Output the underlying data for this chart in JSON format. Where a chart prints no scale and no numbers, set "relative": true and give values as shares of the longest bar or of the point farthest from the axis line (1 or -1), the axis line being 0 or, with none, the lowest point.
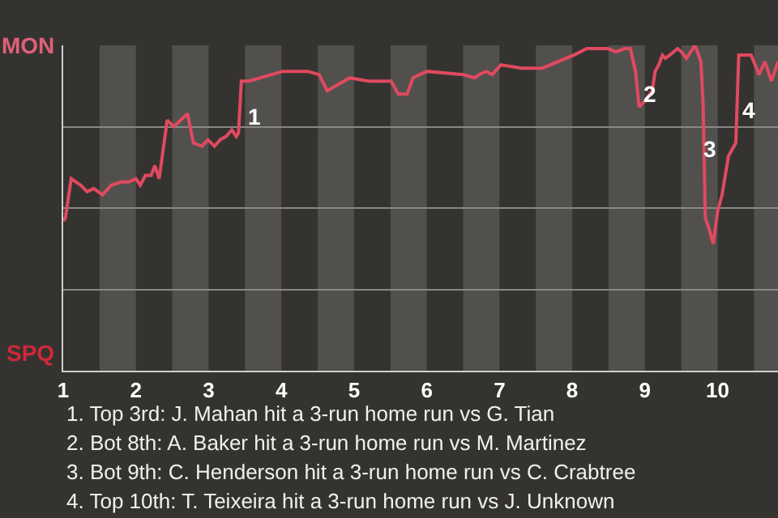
{
  "chart_data": {
    "type": "line",
    "relative": true,
    "legend": false,
    "grid": "y",
    "marker": "none",
    "line_style": "solid",
    "xlim": [
      1,
      10.83
    ],
    "xticks": [
      1,
      2,
      3,
      4,
      5,
      6,
      7,
      8,
      9,
      10
    ],
    "x": [
      1.0,
      1.03,
      1.11,
      1.24,
      1.33,
      1.42,
      1.54,
      1.66,
      1.8,
      1.9,
      2.0,
      2.06,
      2.13,
      2.21,
      2.26,
      2.32,
      2.43,
      2.52,
      2.71,
      2.79,
      2.91,
      2.99,
      3.08,
      3.16,
      3.24,
      3.32,
      3.38,
      3.41,
      3.45,
      3.55,
      4.02,
      4.36,
      4.52,
      4.63,
      4.94,
      5.2,
      5.51,
      5.61,
      5.73,
      5.81,
      6.0,
      6.5,
      6.66,
      6.72,
      6.82,
      6.9,
      7.02,
      7.3,
      7.59,
      8.02,
      8.2,
      8.49,
      8.6,
      8.72,
      8.8,
      8.87,
      8.92,
      9.0,
      9.1,
      9.14,
      9.19,
      9.24,
      9.28,
      9.34,
      9.45,
      9.5,
      9.57,
      9.69,
      9.77,
      9.8,
      9.82,
      9.83,
      9.89,
      9.94,
      10.0,
      10.06,
      10.15,
      10.25,
      10.29,
      10.37,
      10.46,
      10.57,
      10.65,
      10.74,
      10.83
    ],
    "series": [
      {
        "color": "#e04a60",
        "values": [
          0.46,
          0.47,
          0.59,
          0.57,
          0.55,
          0.56,
          0.54,
          0.57,
          0.58,
          0.58,
          0.59,
          0.57,
          0.6,
          0.6,
          0.63,
          0.59,
          0.77,
          0.75,
          0.79,
          0.7,
          0.69,
          0.71,
          0.69,
          0.71,
          0.72,
          0.74,
          0.72,
          0.73,
          0.89,
          0.89,
          0.92,
          0.92,
          0.91,
          0.86,
          0.9,
          0.89,
          0.89,
          0.85,
          0.85,
          0.9,
          0.92,
          0.91,
          0.9,
          0.91,
          0.92,
          0.91,
          0.94,
          0.93,
          0.93,
          0.97,
          0.99,
          0.99,
          0.98,
          0.99,
          0.99,
          0.92,
          0.81,
          0.83,
          0.86,
          0.92,
          0.94,
          0.97,
          0.96,
          0.97,
          0.99,
          0.98,
          0.96,
          1.0,
          0.95,
          0.82,
          0.59,
          0.47,
          0.43,
          0.39,
          0.49,
          0.54,
          0.66,
          0.7,
          0.97,
          0.97,
          0.97,
          0.91,
          0.95,
          0.89,
          0.95
        ]
      }
    ],
    "bands": [
      {
        "axis": "x",
        "from": 1.5,
        "to": 2,
        "color": "#52504d"
      },
      {
        "axis": "x",
        "from": 2.5,
        "to": 3,
        "color": "#52504d"
      },
      {
        "axis": "x",
        "from": 3.5,
        "to": 4,
        "color": "#52504d"
      },
      {
        "axis": "x",
        "from": 4.5,
        "to": 5,
        "color": "#52504d"
      },
      {
        "axis": "x",
        "from": 5.5,
        "to": 6,
        "color": "#52504d"
      },
      {
        "axis": "x",
        "from": 6.5,
        "to": 7,
        "color": "#52504d"
      },
      {
        "axis": "x",
        "from": 7.5,
        "to": 8,
        "color": "#52504d"
      },
      {
        "axis": "x",
        "from": 8.5,
        "to": 9,
        "color": "#52504d"
      },
      {
        "axis": "x",
        "from": 9.5,
        "to": 10,
        "color": "#52504d"
      },
      {
        "axis": "x",
        "from": 10.5,
        "to": 10.83,
        "color": "#52504d"
      }
    ],
    "annotations": [
      "MON",
      "SPQ",
      {
        "text": "1",
        "x": 3.62,
        "y": 0.78
      },
      {
        "text": "2",
        "x": 9.07,
        "y": 0.85
      },
      {
        "text": "3",
        "x": 9.9,
        "y": 0.68
      },
      {
        "text": "4",
        "x": 10.42,
        "y": 0.8
      },
      "1. Top 3rd: J. Mahan hit a 3-run home run vs G. Tian",
      "2. Bot 8th: A. Baker hit a 3-run home run vs M. Martinez",
      "3. Bot 9th: C. Henderson hit a 3-run home run vs C. Crabtree",
      "4. Top 10th: T. Teixeira hit a 3-run home run vs J. Unknown"
    ]
  }
}
